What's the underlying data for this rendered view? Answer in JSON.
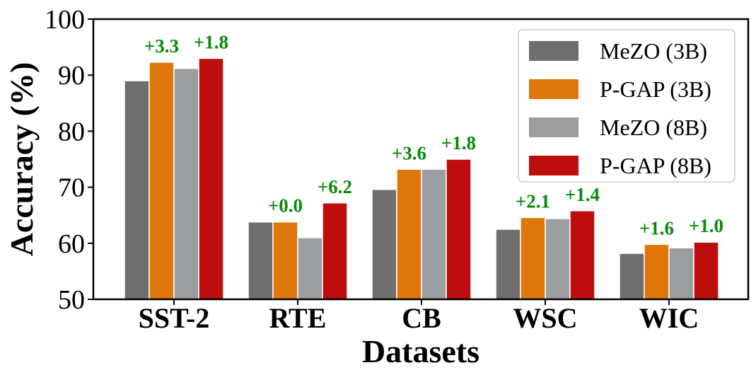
{
  "chart_data": {
    "type": "bar",
    "title": "",
    "xlabel": "Datasets",
    "ylabel": "Accuracy (%)",
    "ylim": [
      50,
      100
    ],
    "yticks": [
      50,
      60,
      70,
      80,
      90,
      100
    ],
    "categories": [
      "SST-2",
      "RTE",
      "CB",
      "WSC",
      "WIC"
    ],
    "series": [
      {
        "name": "MeZO (3B)",
        "color": "#6e6e6e",
        "values": [
          89.0,
          63.8,
          69.6,
          62.5,
          58.2
        ]
      },
      {
        "name": "P-GAP (3B)",
        "color": "#df7609",
        "values": [
          92.3,
          63.8,
          73.2,
          64.6,
          59.8
        ]
      },
      {
        "name": "MeZO (8B)",
        "color": "#9b9ea1",
        "values": [
          91.2,
          61.0,
          73.2,
          64.4,
          59.2
        ]
      },
      {
        "name": "P-GAP (8B)",
        "color": "#be0d0d",
        "values": [
          93.0,
          67.2,
          75.0,
          65.8,
          60.2
        ]
      }
    ],
    "annotations": [
      {
        "category": "SST-2",
        "over_series": "P-GAP (3B)",
        "text": "+3.3"
      },
      {
        "category": "SST-2",
        "over_series": "P-GAP (8B)",
        "text": "+1.8"
      },
      {
        "category": "RTE",
        "over_series": "P-GAP (3B)",
        "text": "+0.0"
      },
      {
        "category": "RTE",
        "over_series": "P-GAP (8B)",
        "text": "+6.2"
      },
      {
        "category": "CB",
        "over_series": "P-GAP (3B)",
        "text": "+3.6"
      },
      {
        "category": "CB",
        "over_series": "P-GAP (8B)",
        "text": "+1.8"
      },
      {
        "category": "WSC",
        "over_series": "P-GAP (3B)",
        "text": "+2.1"
      },
      {
        "category": "WSC",
        "over_series": "P-GAP (8B)",
        "text": "+1.4"
      },
      {
        "category": "WIC",
        "over_series": "P-GAP (3B)",
        "text": "+1.6"
      },
      {
        "category": "WIC",
        "over_series": "P-GAP (8B)",
        "text": "+1.0"
      }
    ],
    "annotation_color": "#0a8a0a",
    "legend_position": "top-right",
    "grid": false
  }
}
